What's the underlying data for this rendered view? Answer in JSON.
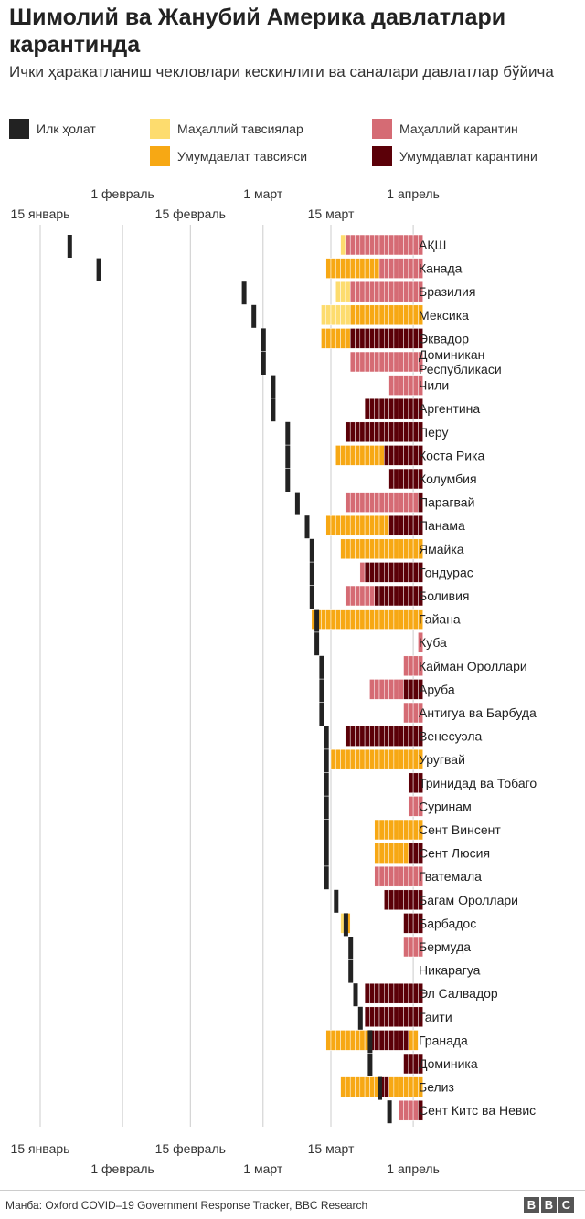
{
  "title": "Шимолий ва Жанубий Америка давлатлари карантинда",
  "subtitle": "Ички ҳаракатланиш чекловлари кескинлиги ва саналари давлатлар бўйича",
  "source": "Манба: Oxford COVID–19 Government Response Tracker, BBC Research",
  "logo": [
    "B",
    "B",
    "C"
  ],
  "colors": {
    "first_case": "#222222",
    "local_advice": "#fddc6e",
    "national_advice": "#f7a814",
    "local_quarantine": "#d56b74",
    "national_quarantine": "#5b0008",
    "gridline": "#cccccc",
    "cell_separator": "#ffffff"
  },
  "legend": [
    {
      "key": "first_case",
      "label": "Илк ҳолат"
    },
    {
      "key": "local_advice",
      "label": "Маҳаллий тавсиялар"
    },
    {
      "key": "local_quarantine",
      "label": "Маҳаллий карантин"
    },
    {
      "key": "national_advice",
      "label": "Умумдавлат тавсияси"
    },
    {
      "key": "national_quarantine",
      "label": "Умумдавлат карантини"
    }
  ],
  "chart_data": {
    "type": "timeline",
    "x_axis": {
      "unit": "day of year 2020",
      "range": [
        6,
        106
      ],
      "gridlines": [
        15,
        32,
        46,
        61,
        75,
        92
      ],
      "ticks_upper_row": [
        {
          "day": 32,
          "label": "1 февраль"
        },
        {
          "day": 61,
          "label": "1 март"
        },
        {
          "day": 92,
          "label": "1 апрель"
        }
      ],
      "ticks_lower_row": [
        {
          "day": 15,
          "label": "15 январь"
        },
        {
          "day": 46,
          "label": "15 февраль"
        },
        {
          "day": 75,
          "label": "15 март"
        }
      ]
    },
    "countries": [
      {
        "name": "АҚШ",
        "first_case": 21,
        "segments": [
          [
            77,
            78,
            "local_advice"
          ],
          [
            78,
            94,
            "local_quarantine"
          ]
        ]
      },
      {
        "name": "Канада",
        "first_case": 27,
        "segments": [
          [
            74,
            85,
            "national_advice"
          ],
          [
            85,
            94,
            "local_quarantine"
          ]
        ]
      },
      {
        "name": "Бразилия",
        "first_case": 57,
        "segments": [
          [
            76,
            79,
            "local_advice"
          ],
          [
            79,
            94,
            "local_quarantine"
          ]
        ]
      },
      {
        "name": "Мексика",
        "first_case": 59,
        "segments": [
          [
            73,
            79,
            "local_advice"
          ],
          [
            79,
            94,
            "national_advice"
          ]
        ]
      },
      {
        "name": "Эквадор",
        "first_case": 61,
        "segments": [
          [
            73,
            79,
            "national_advice"
          ],
          [
            79,
            94,
            "national_quarantine"
          ]
        ]
      },
      {
        "name": "Доминикан Республикаси",
        "first_case": 61,
        "segments": [
          [
            79,
            94,
            "local_quarantine"
          ]
        ]
      },
      {
        "name": "Чили",
        "first_case": 63,
        "segments": [
          [
            87,
            94,
            "local_quarantine"
          ]
        ]
      },
      {
        "name": "Аргентина",
        "first_case": 63,
        "segments": [
          [
            82,
            94,
            "national_quarantine"
          ]
        ]
      },
      {
        "name": "Перу",
        "first_case": 66,
        "segments": [
          [
            78,
            94,
            "national_quarantine"
          ]
        ]
      },
      {
        "name": "Коста Рика",
        "first_case": 66,
        "segments": [
          [
            76,
            86,
            "national_advice"
          ],
          [
            86,
            94,
            "national_quarantine"
          ]
        ]
      },
      {
        "name": "Колумбия",
        "first_case": 66,
        "segments": [
          [
            87,
            94,
            "national_quarantine"
          ]
        ]
      },
      {
        "name": "Парагвай",
        "first_case": 68,
        "segments": [
          [
            78,
            93,
            "local_quarantine"
          ],
          [
            93,
            94,
            "national_quarantine"
          ]
        ]
      },
      {
        "name": "Панама",
        "first_case": 70,
        "segments": [
          [
            74,
            87,
            "national_advice"
          ],
          [
            87,
            94,
            "national_quarantine"
          ]
        ]
      },
      {
        "name": "Ямайка",
        "first_case": 71,
        "segments": [
          [
            77,
            94,
            "national_advice"
          ]
        ]
      },
      {
        "name": "Гондурас",
        "first_case": 71,
        "segments": [
          [
            81,
            82,
            "local_quarantine"
          ],
          [
            82,
            94,
            "national_quarantine"
          ]
        ]
      },
      {
        "name": "Боливия",
        "first_case": 71,
        "segments": [
          [
            78,
            84,
            "local_quarantine"
          ],
          [
            84,
            94,
            "national_quarantine"
          ]
        ]
      },
      {
        "name": "Гайана",
        "first_case": 72,
        "segments": [
          [
            71,
            94,
            "national_advice"
          ]
        ]
      },
      {
        "name": "Куба",
        "first_case": 72,
        "segments": [
          [
            93,
            94,
            "local_quarantine"
          ]
        ]
      },
      {
        "name": "Кайман Ороллари",
        "first_case": 73,
        "segments": [
          [
            90,
            94,
            "local_quarantine"
          ]
        ]
      },
      {
        "name": "Аруба",
        "first_case": 73,
        "segments": [
          [
            83,
            90,
            "local_quarantine"
          ],
          [
            90,
            94,
            "national_quarantine"
          ]
        ]
      },
      {
        "name": "Антигуа ва Барбуда",
        "first_case": 73,
        "segments": [
          [
            90,
            94,
            "local_quarantine"
          ]
        ]
      },
      {
        "name": "Венесуэла",
        "first_case": 74,
        "segments": [
          [
            78,
            94,
            "national_quarantine"
          ]
        ]
      },
      {
        "name": "Уругвай",
        "first_case": 74,
        "segments": [
          [
            75,
            94,
            "national_advice"
          ]
        ]
      },
      {
        "name": "Тринидад ва Тобаго",
        "first_case": 74,
        "segments": [
          [
            91,
            94,
            "national_quarantine"
          ]
        ]
      },
      {
        "name": "Суринам",
        "first_case": 74,
        "segments": [
          [
            91,
            94,
            "local_quarantine"
          ]
        ]
      },
      {
        "name": "Сент Винсент",
        "first_case": 74,
        "segments": [
          [
            84,
            94,
            "national_advice"
          ]
        ]
      },
      {
        "name": "Сент Люсия",
        "first_case": 74,
        "segments": [
          [
            84,
            91,
            "national_advice"
          ],
          [
            91,
            94,
            "national_quarantine"
          ]
        ]
      },
      {
        "name": "Гватемала",
        "first_case": 74,
        "segments": [
          [
            84,
            94,
            "local_quarantine"
          ]
        ]
      },
      {
        "name": "Багам Ороллари",
        "first_case": 76,
        "segments": [
          [
            86,
            94,
            "national_quarantine"
          ]
        ]
      },
      {
        "name": "Барбадос",
        "first_case": 78,
        "segments": [
          [
            77,
            78,
            "local_advice"
          ],
          [
            78,
            79,
            "national_advice"
          ],
          [
            90,
            94,
            "national_quarantine"
          ]
        ]
      },
      {
        "name": "Бермуда",
        "first_case": 79,
        "segments": [
          [
            90,
            94,
            "local_quarantine"
          ]
        ]
      },
      {
        "name": "Никарагуа",
        "first_case": 79,
        "segments": []
      },
      {
        "name": "Эл Салвадор",
        "first_case": 80,
        "segments": [
          [
            82,
            94,
            "national_quarantine"
          ]
        ]
      },
      {
        "name": "Гаити",
        "first_case": 81,
        "segments": [
          [
            82,
            94,
            "national_quarantine"
          ]
        ]
      },
      {
        "name": "Гранада",
        "first_case": 83,
        "segments": [
          [
            74,
            93,
            "national_advice"
          ],
          [
            83,
            91,
            "national_quarantine"
          ]
        ]
      },
      {
        "name": "Доминика",
        "first_case": 83,
        "segments": [
          [
            90,
            94,
            "national_quarantine"
          ]
        ]
      },
      {
        "name": "Белиз",
        "first_case": 85,
        "segments": [
          [
            77,
            85,
            "national_advice"
          ],
          [
            85,
            87,
            "national_quarantine"
          ],
          [
            87,
            94,
            "national_advice"
          ]
        ]
      },
      {
        "name": "Сент Китс ва Невис",
        "first_case": 87,
        "segments": [
          [
            89,
            93,
            "local_quarantine"
          ],
          [
            93,
            94,
            "national_quarantine"
          ]
        ]
      }
    ]
  }
}
